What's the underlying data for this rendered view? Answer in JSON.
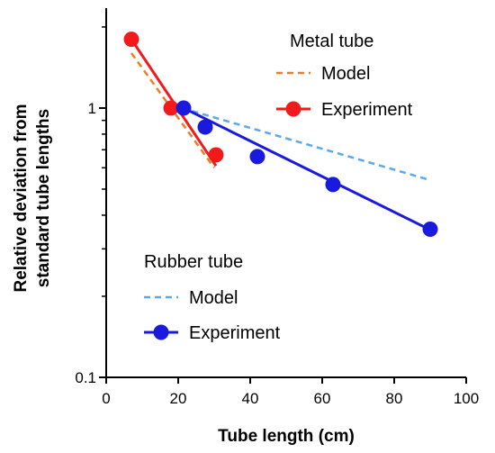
{
  "chart_data": {
    "type": "scatter",
    "xlabel": "Tube length (cm)",
    "ylabel": [
      "Relative deviation from",
      "standard tube lengths"
    ],
    "xlim": [
      0,
      100
    ],
    "ylim": [
      0.1,
      2.35
    ],
    "yscale": "log",
    "xticks": [
      "0",
      "20",
      "40",
      "60",
      "80",
      "100"
    ],
    "xtick_values": [
      0,
      20,
      40,
      60,
      80,
      100
    ],
    "yticks": [
      "0.1",
      "1"
    ],
    "ytick_values": [
      0.1,
      1
    ],
    "grid": false,
    "series": [
      {
        "name": "Model",
        "group": "metal",
        "kind": "dashed-line",
        "color": "#F07C2A",
        "x": [
          7,
          30
        ],
        "y": [
          1.6,
          0.6
        ]
      },
      {
        "name": "Experiment",
        "group": "metal",
        "kind": "points",
        "color": "#F21B1B",
        "x": [
          7,
          18,
          30.5
        ],
        "y": [
          1.8,
          1.0,
          0.67
        ]
      },
      {
        "name": "Experiment fit",
        "group": "metal",
        "kind": "line",
        "color": "#F21B1B",
        "x": [
          7,
          30.5
        ],
        "y": [
          1.8,
          0.61
        ]
      },
      {
        "name": "Model",
        "group": "rubber",
        "kind": "dashed-line",
        "color": "#5BA8EE",
        "x": [
          21,
          90
        ],
        "y": [
          1.0,
          0.54
        ]
      },
      {
        "name": "Experiment",
        "group": "rubber",
        "kind": "points",
        "color": "#1A1ADF",
        "x": [
          21.5,
          27.5,
          42,
          63,
          90
        ],
        "y": [
          1.0,
          0.85,
          0.66,
          0.52,
          0.355
        ]
      },
      {
        "name": "Experiment fit",
        "group": "rubber",
        "kind": "line",
        "color": "#1A1ADF",
        "x": [
          21.5,
          90
        ],
        "y": [
          1.0,
          0.353
        ]
      }
    ],
    "legends": [
      {
        "title": "Metal tube",
        "placement": "top-right",
        "entries": [
          {
            "label": "Model",
            "kind": "dashed-line",
            "color": "#F07C2A"
          },
          {
            "label": "Experiment",
            "kind": "line-marker",
            "color": "#F21B1B"
          }
        ]
      },
      {
        "title": "Rubber tube",
        "placement": "bottom-left",
        "entries": [
          {
            "label": "Model",
            "kind": "dashed-line",
            "color": "#5BA8EE"
          },
          {
            "label": "Experiment",
            "kind": "line-marker",
            "color": "#1A1ADF"
          }
        ]
      }
    ]
  }
}
